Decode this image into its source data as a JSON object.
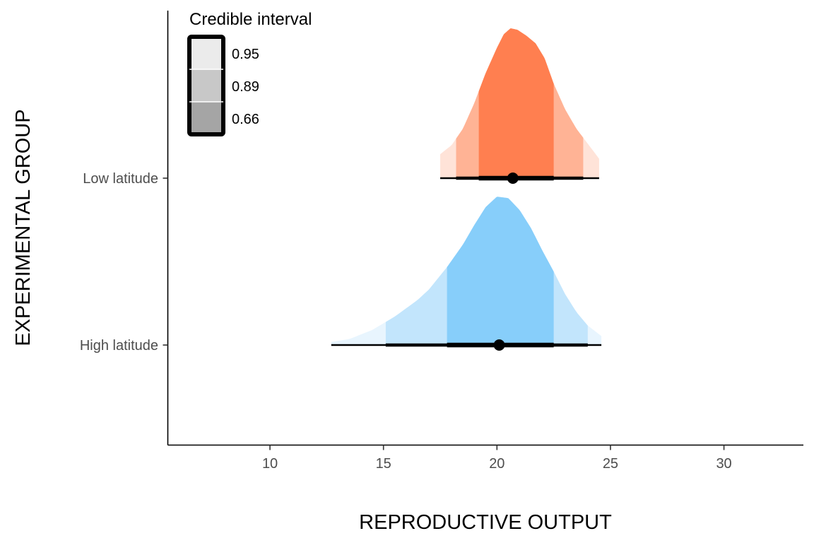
{
  "chart_data": {
    "type": "density-interval",
    "title": "",
    "xlabel": "REPRODUCTIVE OUTPUT",
    "ylabel": "EXPERIMENTAL GROUP",
    "xlim": [
      5.5,
      33.5
    ],
    "x_ticks": [
      10,
      15,
      20,
      25,
      30
    ],
    "grid": false,
    "legend": {
      "title": "Credible interval",
      "position": "top-left",
      "entries": [
        {
          "label": "0.95",
          "level": 0.95,
          "fill": "#ebebeb"
        },
        {
          "label": "0.89",
          "level": 0.89,
          "fill": "#c8c8c8"
        },
        {
          "label": "0.66",
          "level": 0.66,
          "fill": "#a5a5a5"
        }
      ]
    },
    "categories": [
      "High latitude",
      "Low latitude"
    ],
    "series": [
      {
        "category": "Low latitude",
        "colors": {
          "inner": "#ff7f50",
          "mid": "#ffb395",
          "outer": "#ffe3d8"
        },
        "point_estimate": 20.7,
        "intervals": {
          "0.66": [
            19.2,
            22.5
          ],
          "0.89": [
            18.2,
            23.8
          ],
          "0.95": [
            17.5,
            24.5
          ]
        },
        "density": {
          "x": [
            17.5,
            18.0,
            18.5,
            19.0,
            19.5,
            20.0,
            20.3,
            20.6,
            20.9,
            21.3,
            21.7,
            22.1,
            22.5,
            23.0,
            23.5,
            24.0,
            24.5
          ],
          "y": [
            0.16,
            0.22,
            0.33,
            0.5,
            0.7,
            0.87,
            0.96,
            1.0,
            0.99,
            0.95,
            0.9,
            0.8,
            0.63,
            0.46,
            0.33,
            0.23,
            0.13
          ]
        }
      },
      {
        "category": "High latitude",
        "colors": {
          "inner": "#87cefa",
          "mid": "#c2e5fc",
          "outer": "#e8f5fe"
        },
        "point_estimate": 20.1,
        "intervals": {
          "0.66": [
            17.8,
            22.5
          ],
          "0.89": [
            15.1,
            24.0
          ],
          "0.95": [
            12.7,
            24.6
          ]
        },
        "density": {
          "x": [
            12.7,
            13.5,
            14.5,
            15.5,
            16.5,
            17.0,
            17.8,
            18.5,
            19.0,
            19.5,
            20.0,
            20.5,
            21.0,
            21.5,
            22.0,
            22.5,
            23.0,
            23.5,
            24.0,
            24.6
          ],
          "y": [
            0.02,
            0.04,
            0.1,
            0.19,
            0.3,
            0.37,
            0.52,
            0.67,
            0.8,
            0.92,
            0.99,
            0.98,
            0.9,
            0.78,
            0.63,
            0.49,
            0.34,
            0.22,
            0.13,
            0.06
          ]
        }
      }
    ]
  }
}
